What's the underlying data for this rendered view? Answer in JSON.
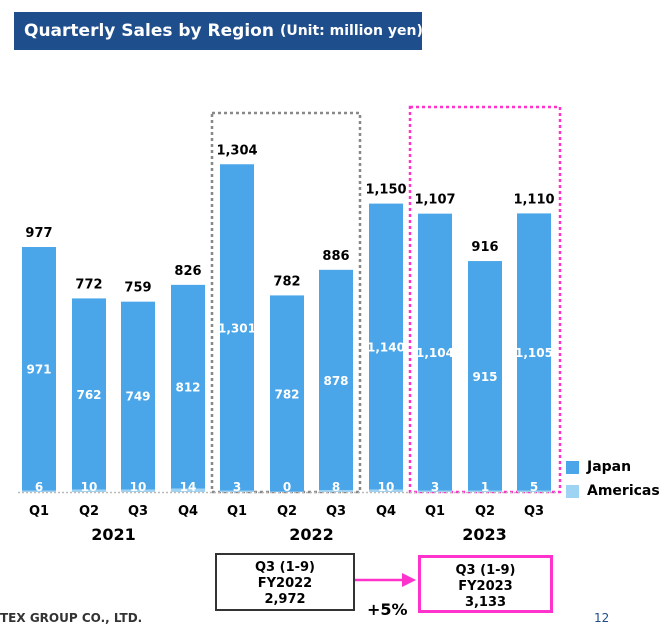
{
  "header": {
    "title": "Quarterly Sales by Region",
    "unit": "(Unit: million yen)"
  },
  "colors": {
    "japan": "#4aa6e8",
    "americas": "#9fd3f3",
    "title_bg": "#1f4e8c",
    "highlight": "#ff33cc",
    "frame": "#888888"
  },
  "chart_data": {
    "type": "bar",
    "stacked": true,
    "title": "Quarterly Sales by Region",
    "unit": "(Unit: million yen)",
    "categories": [
      "Q1",
      "Q2",
      "Q3",
      "Q4",
      "Q1",
      "Q2",
      "Q3",
      "Q4",
      "Q1",
      "Q2",
      "Q3"
    ],
    "years": [
      {
        "label": "2021",
        "quarters": 4
      },
      {
        "label": "2022",
        "quarters": 4
      },
      {
        "label": "2023",
        "quarters": 3
      }
    ],
    "japan_labels": [
      "971",
      "762",
      "749",
      "812",
      "1,301",
      "782",
      "878",
      "1,140",
      "1,104",
      "915",
      "1,105"
    ],
    "americas_labels": [
      "6",
      "10",
      "10",
      "14",
      "3",
      "0",
      "8",
      "10",
      "3",
      "1",
      "5"
    ],
    "total_labels": [
      "977",
      "772",
      "759",
      "826",
      "1,304",
      "782",
      "886",
      "1,150",
      "1,107",
      "916",
      "1,110"
    ],
    "series": [
      {
        "name": "Japan",
        "values": [
          971,
          762,
          749,
          812,
          1301,
          782,
          878,
          1140,
          1104,
          915,
          1105
        ]
      },
      {
        "name": "Americas",
        "values": [
          6,
          10,
          10,
          14,
          3,
          0,
          8,
          10,
          3,
          1,
          5
        ]
      }
    ],
    "totals": [
      977,
      772,
      759,
      826,
      1304,
      782,
      886,
      1150,
      1107,
      916,
      1110
    ],
    "ylim": [
      0,
      1304
    ],
    "legend": "right"
  },
  "comparison": {
    "left": {
      "period": "Q3 (1-9)",
      "fy": "FY2022",
      "value": "2,972"
    },
    "right": {
      "period": "Q3 (1-9)",
      "fy": "FY2023",
      "value": "3,133"
    },
    "growth": "+5%"
  },
  "footer": {
    "company": "TEX GROUP CO., LTD.",
    "page": "12"
  }
}
